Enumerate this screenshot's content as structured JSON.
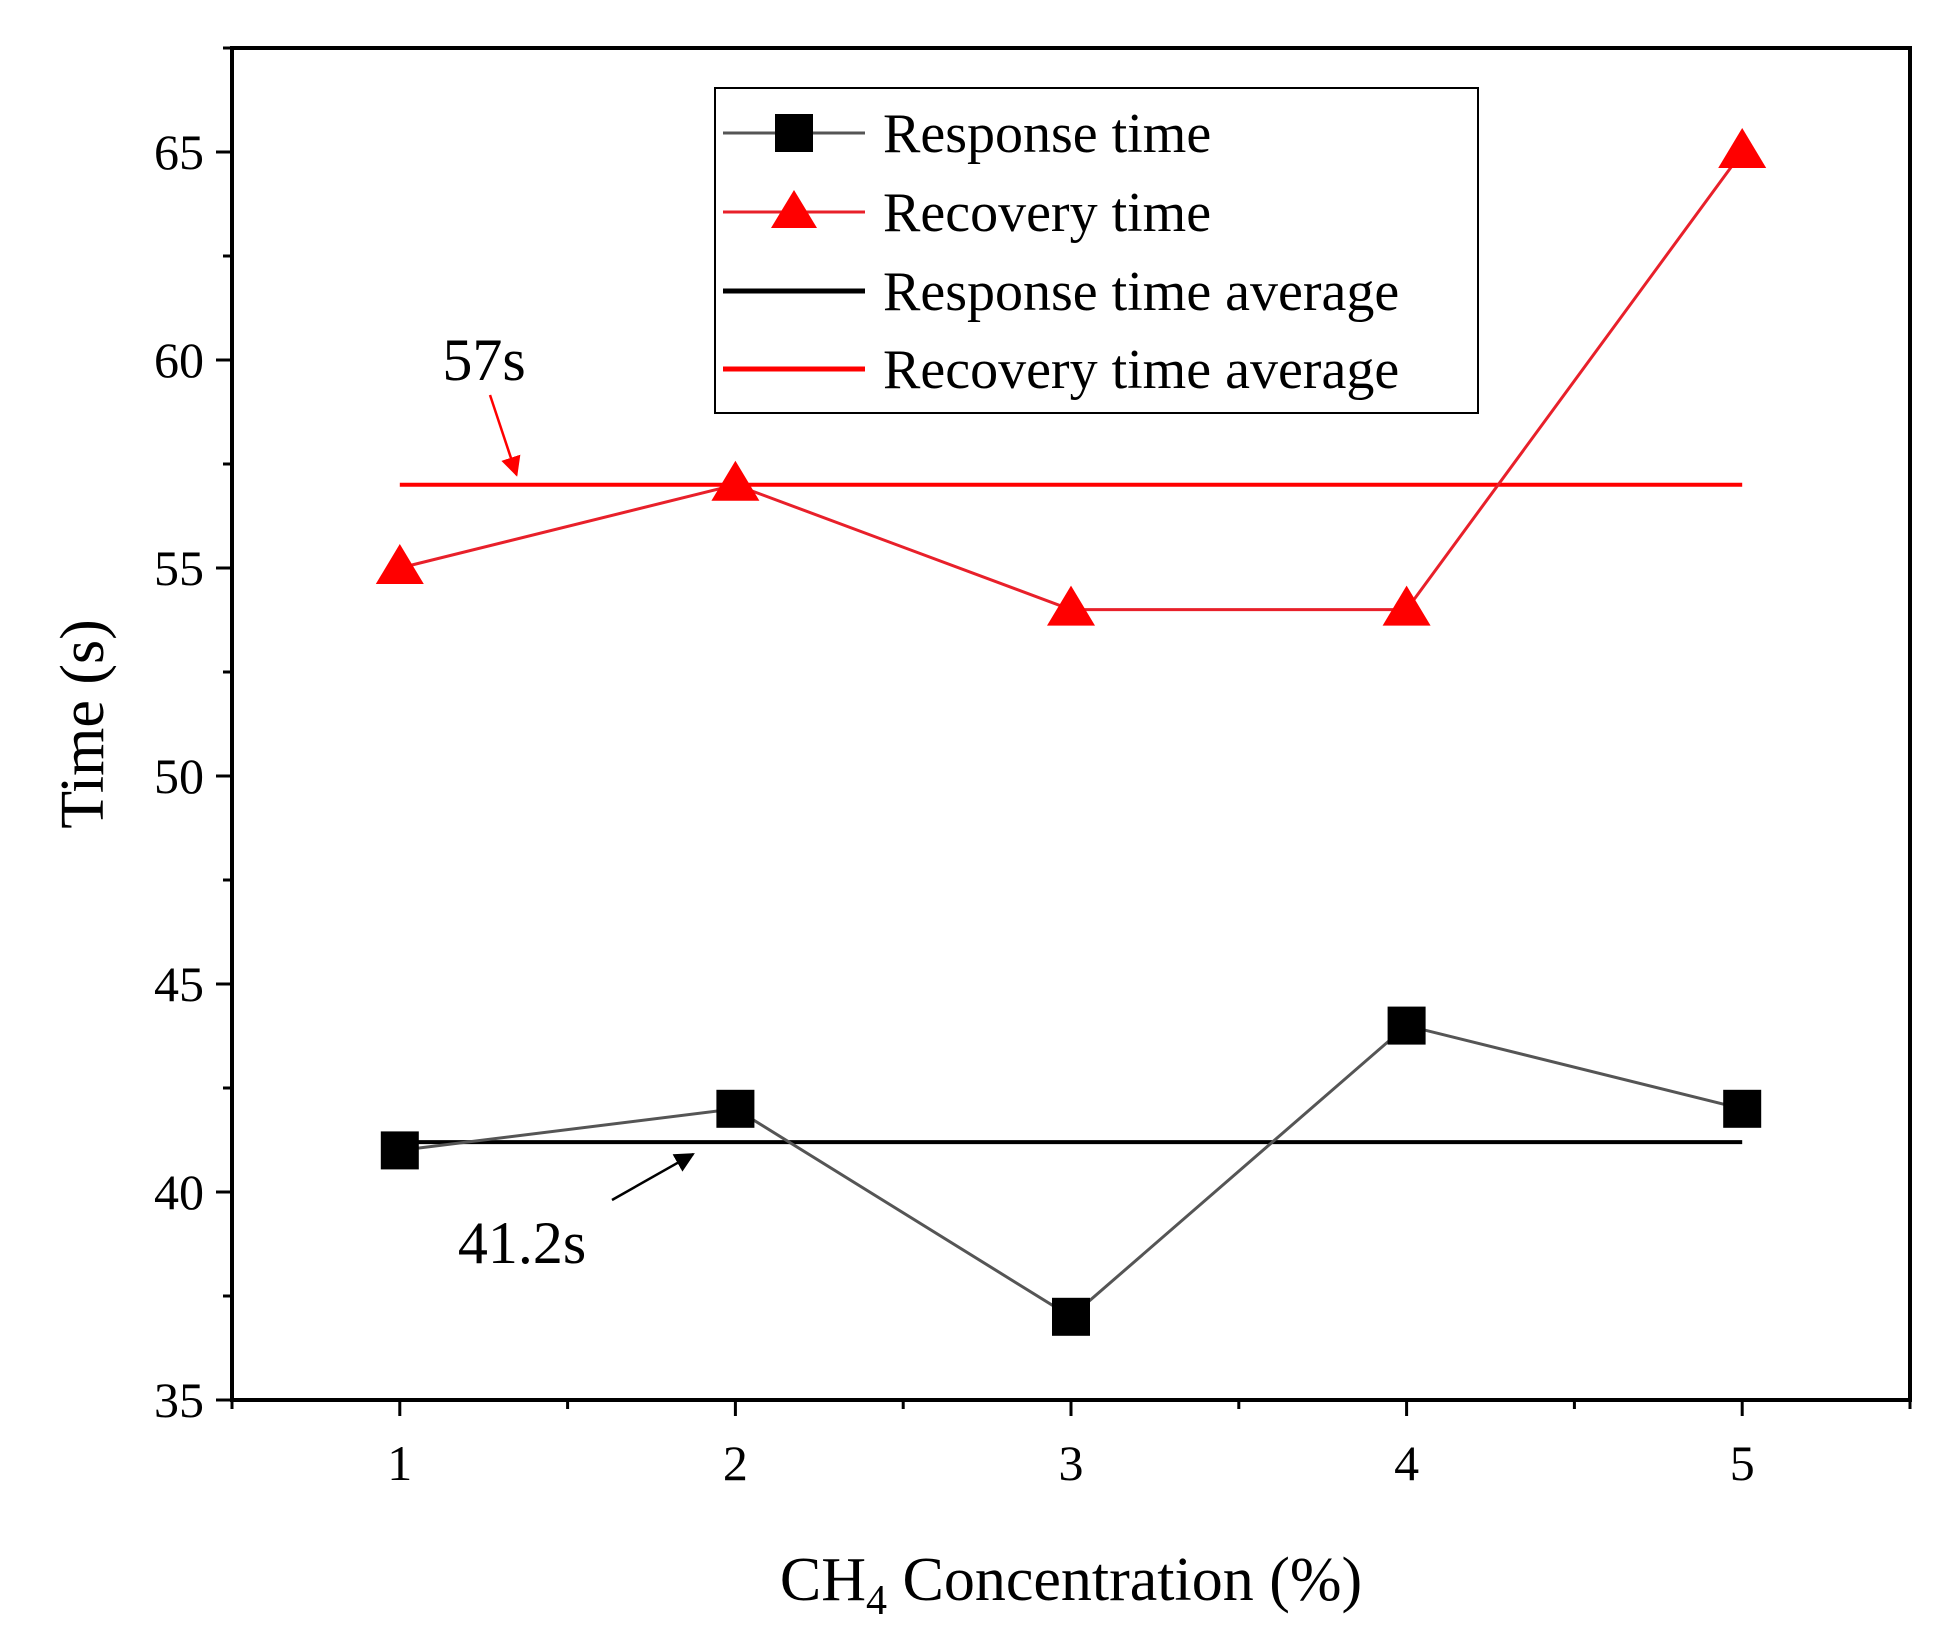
{
  "chart_data": {
    "type": "line",
    "xlabel_main": "CH",
    "xlabel_sub": "4",
    "xlabel_rest": " Concentration (%)",
    "ylabel": "Time (s)",
    "x": [
      1,
      2,
      3,
      4,
      5
    ],
    "x_tick_labels": [
      "1",
      "2",
      "3",
      "4",
      "5"
    ],
    "xlim": [
      0.5,
      5.5
    ],
    "ylim": [
      35,
      67.5
    ],
    "y_ticks": [
      35,
      40,
      45,
      50,
      55,
      60,
      65
    ],
    "y_tick_labels": [
      "35",
      "40",
      "45",
      "50",
      "55",
      "60",
      "65"
    ],
    "series": [
      {
        "name": "Response time",
        "values": [
          41,
          42,
          37,
          44,
          42
        ],
        "color": "#000000",
        "line_color": "#555555",
        "marker": "square"
      },
      {
        "name": "Recovery time",
        "values": [
          55,
          57,
          54,
          54,
          65
        ],
        "color": "#ff0000",
        "line_color": "#e8202a",
        "marker": "triangle"
      },
      {
        "name": "Response time average",
        "value": 41.2,
        "color": "#000000",
        "marker": "none"
      },
      {
        "name": "Recovery time average",
        "value": 57,
        "color": "#ff0000",
        "marker": "none"
      }
    ],
    "annotations": [
      {
        "text": "57s",
        "target_x": 1.33,
        "target_y": 57
      },
      {
        "text": "41.2s",
        "target_x": 1.88,
        "target_y": 41.2
      }
    ],
    "legend_position": "top-right"
  }
}
